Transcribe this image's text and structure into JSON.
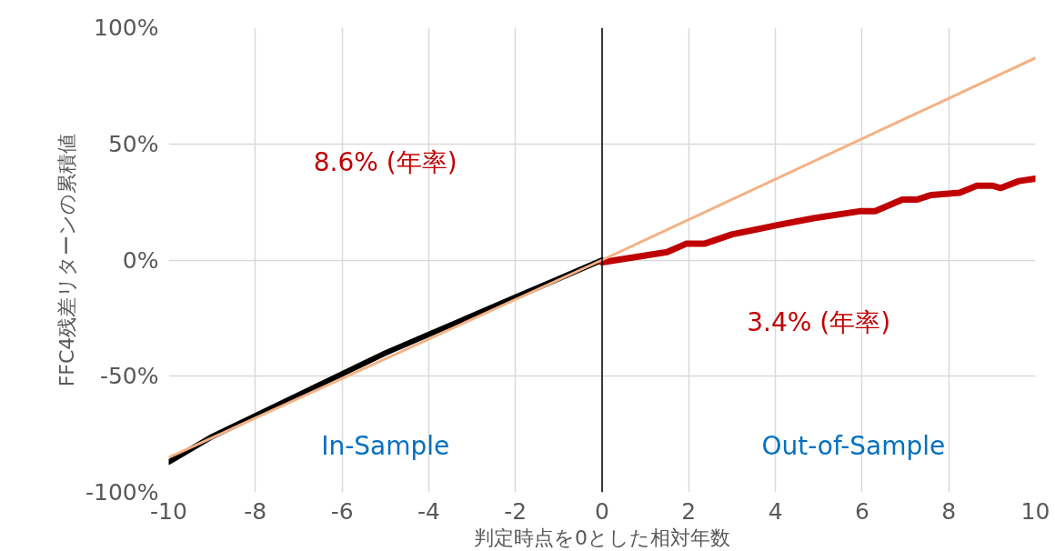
{
  "chart_data": {
    "type": "line",
    "xlabel": "判定時点を0とした相対年数",
    "ylabel": "FFC4残差リターンの累積値",
    "xlim": [
      -10,
      10
    ],
    "ylim": [
      -100,
      100
    ],
    "xticks": [
      -10,
      -8,
      -6,
      -4,
      -2,
      0,
      2,
      4,
      6,
      8,
      10
    ],
    "yticks": [
      {
        "value": -100,
        "label": "-100%"
      },
      {
        "value": -50,
        "label": "-50%"
      },
      {
        "value": 0,
        "label": "0%"
      },
      {
        "value": 50,
        "label": "50%"
      },
      {
        "value": 100,
        "label": "100%"
      }
    ],
    "grid": true,
    "line_style": "solid",
    "marker": "none",
    "series": [
      {
        "color": "#000000",
        "x": [
          -10,
          -9,
          -8,
          -7,
          -6,
          -5,
          -4,
          -3,
          -2,
          -1,
          0
        ],
        "values": [
          -87,
          -76,
          -67,
          -58,
          -49,
          -40,
          -32,
          -24,
          -16,
          -8,
          0
        ]
      },
      {
        "color": "#c00000",
        "x": [
          0,
          1.5,
          1.94,
          2.36,
          2.99,
          4.04,
          4.88,
          5.94,
          6.3,
          6.93,
          7.26,
          7.6,
          8.25,
          8.65,
          9.0,
          9.2,
          9.62,
          10
        ],
        "values": [
          -1,
          3.4,
          7,
          7,
          11,
          15,
          18,
          21,
          21,
          26,
          26,
          28,
          29,
          32,
          32,
          31,
          34,
          35
        ]
      },
      {
        "color": "#f4b183",
        "x": [
          -10,
          0,
          10
        ],
        "values": [
          -85,
          0,
          87
        ]
      }
    ],
    "ref_lines": [
      {
        "axis": "x",
        "value": 0,
        "color": "#000000"
      }
    ],
    "annotations": [
      "8.6% (年率)",
      "3.4% (年率)",
      "In-Sample",
      "Out-of-Sample"
    ]
  }
}
